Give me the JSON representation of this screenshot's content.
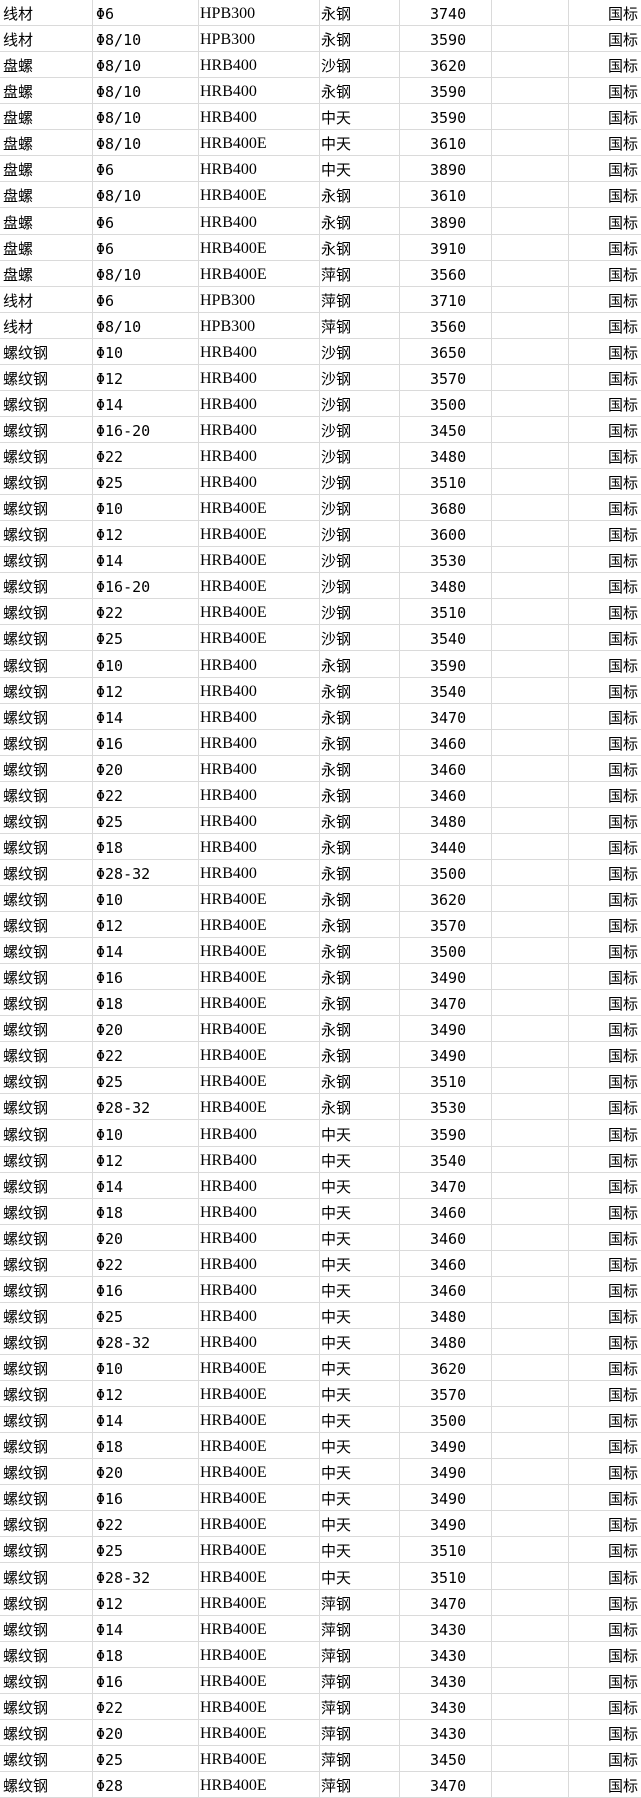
{
  "grid_color": "#dadada",
  "standard": "国标",
  "rows": [
    [
      "线材",
      "Φ6",
      "HPB300",
      "永钢",
      "3740"
    ],
    [
      "线材",
      "Φ8/10",
      "HPB300",
      "永钢",
      "3590"
    ],
    [
      "盘螺",
      "Φ8/10",
      "HRB400",
      "沙钢",
      "3620"
    ],
    [
      "盘螺",
      "Φ8/10",
      "HRB400",
      "永钢",
      "3590"
    ],
    [
      "盘螺",
      "Φ8/10",
      "HRB400",
      "中天",
      "3590"
    ],
    [
      "盘螺",
      "Φ8/10",
      "HRB400E",
      "中天",
      "3610"
    ],
    [
      "盘螺",
      "Φ6",
      "HRB400",
      "中天",
      "3890"
    ],
    [
      "盘螺",
      "Φ8/10",
      "HRB400E",
      "永钢",
      "3610"
    ],
    [
      "盘螺",
      "Φ6",
      "HRB400",
      "永钢",
      "3890"
    ],
    [
      "盘螺",
      "Φ6",
      "HRB400E",
      "永钢",
      "3910"
    ],
    [
      "盘螺",
      "Φ8/10",
      "HRB400E",
      "萍钢",
      "3560"
    ],
    [
      "线材",
      "Φ6",
      "HPB300",
      "萍钢",
      "3710"
    ],
    [
      "线材",
      "Φ8/10",
      "HPB300",
      "萍钢",
      "3560"
    ],
    [
      "螺纹钢",
      "Φ10",
      "HRB400",
      "沙钢",
      "3650"
    ],
    [
      "螺纹钢",
      "Φ12",
      "HRB400",
      "沙钢",
      "3570"
    ],
    [
      "螺纹钢",
      "Φ14",
      "HRB400",
      "沙钢",
      "3500"
    ],
    [
      "螺纹钢",
      "Φ16-20",
      "HRB400",
      "沙钢",
      "3450"
    ],
    [
      "螺纹钢",
      "Φ22",
      "HRB400",
      "沙钢",
      "3480"
    ],
    [
      "螺纹钢",
      "Φ25",
      "HRB400",
      "沙钢",
      "3510"
    ],
    [
      "螺纹钢",
      "Φ10",
      "HRB400E",
      "沙钢",
      "3680"
    ],
    [
      "螺纹钢",
      "Φ12",
      "HRB400E",
      "沙钢",
      "3600"
    ],
    [
      "螺纹钢",
      "Φ14",
      "HRB400E",
      "沙钢",
      "3530"
    ],
    [
      "螺纹钢",
      "Φ16-20",
      "HRB400E",
      "沙钢",
      "3480"
    ],
    [
      "螺纹钢",
      "Φ22",
      "HRB400E",
      "沙钢",
      "3510"
    ],
    [
      "螺纹钢",
      "Φ25",
      "HRB400E",
      "沙钢",
      "3540"
    ],
    [
      "螺纹钢",
      "Φ10",
      "HRB400",
      "永钢",
      "3590"
    ],
    [
      "螺纹钢",
      "Φ12",
      "HRB400",
      "永钢",
      "3540"
    ],
    [
      "螺纹钢",
      "Φ14",
      "HRB400",
      "永钢",
      "3470"
    ],
    [
      "螺纹钢",
      "Φ16",
      "HRB400",
      "永钢",
      "3460"
    ],
    [
      "螺纹钢",
      "Φ20",
      "HRB400",
      "永钢",
      "3460"
    ],
    [
      "螺纹钢",
      "Φ22",
      "HRB400",
      "永钢",
      "3460"
    ],
    [
      "螺纹钢",
      "Φ25",
      "HRB400",
      "永钢",
      "3480"
    ],
    [
      "螺纹钢",
      "Φ18",
      "HRB400",
      "永钢",
      "3440"
    ],
    [
      "螺纹钢",
      "Φ28-32",
      "HRB400",
      "永钢",
      "3500"
    ],
    [
      "螺纹钢",
      "Φ10",
      "HRB400E",
      "永钢",
      "3620"
    ],
    [
      "螺纹钢",
      "Φ12",
      "HRB400E",
      "永钢",
      "3570"
    ],
    [
      "螺纹钢",
      "Φ14",
      "HRB400E",
      "永钢",
      "3500"
    ],
    [
      "螺纹钢",
      "Φ16",
      "HRB400E",
      "永钢",
      "3490"
    ],
    [
      "螺纹钢",
      "Φ18",
      "HRB400E",
      "永钢",
      "3470"
    ],
    [
      "螺纹钢",
      "Φ20",
      "HRB400E",
      "永钢",
      "3490"
    ],
    [
      "螺纹钢",
      "Φ22",
      "HRB400E",
      "永钢",
      "3490"
    ],
    [
      "螺纹钢",
      "Φ25",
      "HRB400E",
      "永钢",
      "3510"
    ],
    [
      "螺纹钢",
      "Φ28-32",
      "HRB400E",
      "永钢",
      "3530"
    ],
    [
      "螺纹钢",
      "Φ10",
      "HRB400",
      "中天",
      "3590"
    ],
    [
      "螺纹钢",
      "Φ12",
      "HRB400",
      "中天",
      "3540"
    ],
    [
      "螺纹钢",
      "Φ14",
      "HRB400",
      "中天",
      "3470"
    ],
    [
      "螺纹钢",
      "Φ18",
      "HRB400",
      "中天",
      "3460"
    ],
    [
      "螺纹钢",
      "Φ20",
      "HRB400",
      "中天",
      "3460"
    ],
    [
      "螺纹钢",
      "Φ22",
      "HRB400",
      "中天",
      "3460"
    ],
    [
      "螺纹钢",
      "Φ16",
      "HRB400",
      "中天",
      "3460"
    ],
    [
      "螺纹钢",
      "Φ25",
      "HRB400",
      "中天",
      "3480"
    ],
    [
      "螺纹钢",
      "Φ28-32",
      "HRB400",
      "中天",
      "3480"
    ],
    [
      "螺纹钢",
      "Φ10",
      "HRB400E",
      "中天",
      "3620"
    ],
    [
      "螺纹钢",
      "Φ12",
      "HRB400E",
      "中天",
      "3570"
    ],
    [
      "螺纹钢",
      "Φ14",
      "HRB400E",
      "中天",
      "3500"
    ],
    [
      "螺纹钢",
      "Φ18",
      "HRB400E",
      "中天",
      "3490"
    ],
    [
      "螺纹钢",
      "Φ20",
      "HRB400E",
      "中天",
      "3490"
    ],
    [
      "螺纹钢",
      "Φ16",
      "HRB400E",
      "中天",
      "3490"
    ],
    [
      "螺纹钢",
      "Φ22",
      "HRB400E",
      "中天",
      "3490"
    ],
    [
      "螺纹钢",
      "Φ25",
      "HRB400E",
      "中天",
      "3510"
    ],
    [
      "螺纹钢",
      "Φ28-32",
      "HRB400E",
      "中天",
      "3510"
    ],
    [
      "螺纹钢",
      "Φ12",
      "HRB400E",
      "萍钢",
      "3470"
    ],
    [
      "螺纹钢",
      "Φ14",
      "HRB400E",
      "萍钢",
      "3430"
    ],
    [
      "螺纹钢",
      "Φ18",
      "HRB400E",
      "萍钢",
      "3430"
    ],
    [
      "螺纹钢",
      "Φ16",
      "HRB400E",
      "萍钢",
      "3430"
    ],
    [
      "螺纹钢",
      "Φ22",
      "HRB400E",
      "萍钢",
      "3430"
    ],
    [
      "螺纹钢",
      "Φ20",
      "HRB400E",
      "萍钢",
      "3430"
    ],
    [
      "螺纹钢",
      "Φ25",
      "HRB400E",
      "萍钢",
      "3450"
    ],
    [
      "螺纹钢",
      "Φ28",
      "HRB400E",
      "萍钢",
      "3470"
    ]
  ]
}
